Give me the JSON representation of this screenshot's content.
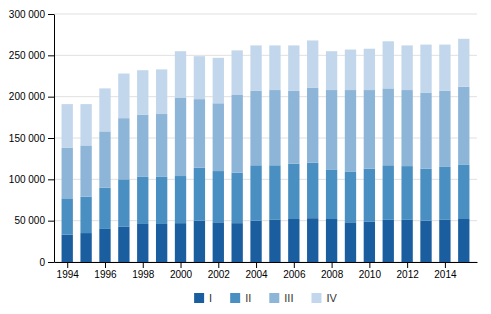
{
  "chart_data": {
    "type": "bar",
    "stacked": true,
    "x": [
      1994,
      1995,
      1996,
      1997,
      1998,
      1999,
      2000,
      2001,
      2002,
      2003,
      2004,
      2005,
      2006,
      2007,
      2008,
      2009,
      2010,
      2011,
      2012,
      2013,
      2014,
      2015
    ],
    "series": [
      {
        "name": "I",
        "color": "#1b5ea0",
        "values": [
          33000,
          35000,
          40000,
          43000,
          46000,
          46000,
          47000,
          50000,
          48000,
          47000,
          50000,
          51000,
          52000,
          53000,
          52000,
          48000,
          49000,
          51000,
          51000,
          50000,
          51000,
          52000
        ]
      },
      {
        "name": "II",
        "color": "#4a8fc2",
        "values": [
          44000,
          44000,
          50000,
          57000,
          57000,
          57000,
          57000,
          64000,
          62000,
          61000,
          67000,
          66000,
          67000,
          67000,
          60000,
          61000,
          64000,
          66000,
          65000,
          63000,
          64000,
          66000
        ]
      },
      {
        "name": "III",
        "color": "#8cb5d8",
        "values": [
          61000,
          62000,
          68000,
          74000,
          75000,
          76000,
          95000,
          83000,
          82000,
          94000,
          90000,
          91000,
          88000,
          91000,
          96000,
          99000,
          95000,
          93000,
          92000,
          92000,
          92000,
          94000
        ]
      },
      {
        "name": "IV",
        "color": "#c2d7eb",
        "values": [
          53000,
          50000,
          52000,
          54000,
          54000,
          54000,
          56000,
          52000,
          55000,
          54000,
          55000,
          54000,
          55000,
          57000,
          47000,
          49000,
          50000,
          57000,
          54000,
          58000,
          56000,
          58000
        ]
      }
    ],
    "xlim": [
      1993.3,
      2015.7
    ],
    "xticks": [
      1994,
      1996,
      1998,
      2000,
      2002,
      2004,
      2006,
      2008,
      2010,
      2012,
      2014
    ],
    "ylim": [
      0,
      300000
    ],
    "yticks": [
      0,
      {
        "value": 50000,
        "label": "50 000"
      },
      {
        "value": 100000,
        "label": "100 000"
      },
      {
        "value": 150000,
        "label": "150 000"
      },
      {
        "value": 200000,
        "label": "200 000"
      },
      {
        "value": 250000,
        "label": "250 000"
      },
      {
        "value": 300000,
        "label": "300 000"
      }
    ],
    "grid": true,
    "legend": "bottom"
  }
}
